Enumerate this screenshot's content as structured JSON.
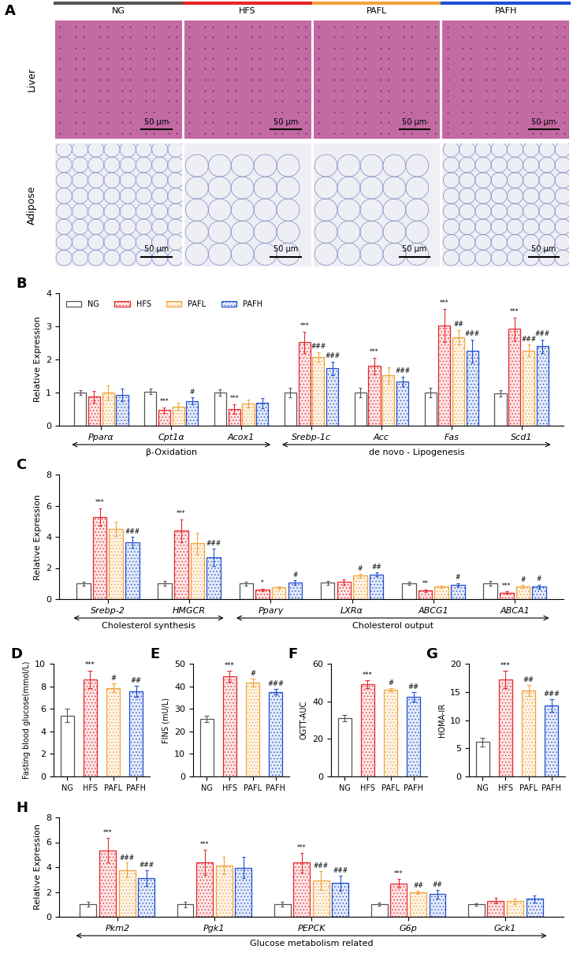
{
  "images": {
    "label": "A",
    "columns": [
      {
        "name": "NG",
        "color": "#555555"
      },
      {
        "name": "HFS",
        "color": "#e8262a"
      },
      {
        "name": "PAFL",
        "color": "#f2a33a"
      },
      {
        "name": "PAFH",
        "color": "#1f4fd1"
      }
    ],
    "rows": [
      "Liver",
      "Adipose"
    ],
    "scale_bar": "50 μm"
  },
  "chart_data": [
    {
      "type": "bar",
      "label": "B",
      "y_label": "Relative Expression",
      "categories": [
        "Pparα",
        "Cpt1α",
        "Acox1",
        "Srebp-1c",
        "Acc",
        "Fas",
        "Scd1"
      ],
      "groups": [
        {
          "label": "β-Oxidation",
          "members": [
            "Pparα",
            "Cpt1α",
            "Acox1"
          ]
        },
        {
          "label": "de novo - Lipogenesis",
          "members": [
            "Srebp-1c",
            "Acc",
            "Fas",
            "Scd1"
          ]
        }
      ],
      "ylim": [
        0,
        4
      ],
      "yticks": [
        0,
        1,
        2,
        3,
        4
      ],
      "legend": "upper left",
      "series": [
        {
          "name": "NG",
          "color": "#555555",
          "values": [
            1.0,
            1.03,
            1.0,
            1.0,
            1.0,
            1.0,
            0.97
          ],
          "errors": [
            0.08,
            0.08,
            0.1,
            0.15,
            0.15,
            0.15,
            0.1
          ],
          "significance": [
            null,
            null,
            null,
            null,
            null,
            null,
            null
          ]
        },
        {
          "name": "HFS",
          "color": "#e8262a",
          "values": [
            0.87,
            0.47,
            0.5,
            2.52,
            1.8,
            3.03,
            2.92
          ],
          "errors": [
            0.18,
            0.08,
            0.15,
            0.32,
            0.25,
            0.5,
            0.35
          ],
          "significance": [
            null,
            "***",
            "***",
            "***",
            "***",
            "***",
            "***"
          ]
        },
        {
          "name": "PAFL",
          "color": "#f2a33a",
          "values": [
            1.0,
            0.58,
            0.67,
            2.07,
            1.52,
            2.67,
            2.27
          ],
          "errors": [
            0.22,
            0.1,
            0.12,
            0.15,
            0.25,
            0.22,
            0.18
          ],
          "significance": [
            null,
            null,
            null,
            "###",
            null,
            "##",
            "###"
          ]
        },
        {
          "name": "PAFH",
          "color": "#1f4fd1",
          "values": [
            0.93,
            0.75,
            0.68,
            1.73,
            1.33,
            2.25,
            2.4
          ],
          "errors": [
            0.2,
            0.1,
            0.15,
            0.2,
            0.15,
            0.35,
            0.2
          ],
          "significance": [
            null,
            "#",
            null,
            "###",
            "###",
            "###",
            "###"
          ]
        }
      ]
    },
    {
      "type": "bar",
      "label": "C",
      "y_label": "Relative Expression",
      "categories": [
        "Srebp-2",
        "HMGCR",
        "Pparγ",
        "LXRα",
        "ABCG1",
        "ABCA1"
      ],
      "groups": [
        {
          "label": "Cholesterol synthesis",
          "members": [
            "Srebp-2",
            "HMGCR"
          ]
        },
        {
          "label": "Cholesterol output",
          "members": [
            "Pparγ",
            "LXRα",
            "ABCG1",
            "ABCA1"
          ]
        }
      ],
      "ylim": [
        0,
        8
      ],
      "yticks": [
        0,
        2,
        4,
        6,
        8
      ],
      "series": [
        {
          "name": "NG",
          "color": "#555555",
          "values": [
            1.0,
            1.0,
            1.0,
            1.05,
            1.0,
            1.0
          ],
          "errors": [
            0.12,
            0.15,
            0.12,
            0.12,
            0.1,
            0.15
          ],
          "significance": [
            null,
            null,
            null,
            null,
            null,
            null
          ]
        },
        {
          "name": "HFS",
          "color": "#e8262a",
          "values": [
            5.28,
            4.38,
            0.6,
            1.1,
            0.55,
            0.42
          ],
          "errors": [
            0.55,
            0.75,
            0.08,
            0.18,
            0.08,
            0.08
          ],
          "significance": [
            "***",
            "***",
            "*",
            null,
            "**",
            "***"
          ]
        },
        {
          "name": "PAFL",
          "color": "#f2a33a",
          "values": [
            4.5,
            3.57,
            0.75,
            1.5,
            0.8,
            0.8
          ],
          "errors": [
            0.45,
            0.7,
            0.08,
            0.12,
            0.08,
            0.1
          ],
          "significance": [
            null,
            null,
            null,
            "#",
            null,
            "#"
          ]
        },
        {
          "name": "PAFH",
          "color": "#1f4fd1",
          "values": [
            3.65,
            2.67,
            1.05,
            1.58,
            0.93,
            0.8
          ],
          "errors": [
            0.35,
            0.55,
            0.15,
            0.12,
            0.1,
            0.12
          ],
          "significance": [
            "###",
            "###",
            "#",
            "##",
            "#",
            "#"
          ]
        }
      ]
    },
    {
      "type": "bar",
      "label": "D",
      "y_label": "Fasting blood glucose(mmol/L)",
      "categories": [
        "NG",
        "HFS",
        "PAFL",
        "PAFH"
      ],
      "colors": [
        "#555555",
        "#e8262a",
        "#f2a33a",
        "#1f4fd1"
      ],
      "values": [
        5.4,
        8.6,
        7.85,
        7.55
      ],
      "errors": [
        0.6,
        0.8,
        0.4,
        0.5
      ],
      "significance": [
        null,
        "***",
        "#",
        "##"
      ],
      "ylim": [
        0,
        10
      ],
      "yticks": [
        0,
        2,
        4,
        6,
        8,
        10
      ]
    },
    {
      "type": "bar",
      "label": "E",
      "y_label": "FINS (mU/L)",
      "categories": [
        "NG",
        "HFS",
        "PAFL",
        "PAFH"
      ],
      "colors": [
        "#555555",
        "#e8262a",
        "#f2a33a",
        "#1f4fd1"
      ],
      "values": [
        25.5,
        44.3,
        41.5,
        37.5
      ],
      "errors": [
        1.5,
        2.5,
        1.8,
        1.2
      ],
      "significance": [
        null,
        "***",
        "#",
        "###"
      ],
      "ylim": [
        0,
        50
      ],
      "yticks": [
        0,
        10,
        20,
        30,
        40,
        50
      ]
    },
    {
      "type": "bar",
      "label": "F",
      "y_label": "OGTT-AUC",
      "categories": [
        "NG",
        "HFS",
        "PAFL",
        "PAFH"
      ],
      "colors": [
        "#555555",
        "#e8262a",
        "#f2a33a",
        "#1f4fd1"
      ],
      "values": [
        31,
        49,
        46,
        42.5
      ],
      "errors": [
        1.8,
        2,
        0.8,
        2.5
      ],
      "significance": [
        null,
        "***",
        "#",
        "##"
      ],
      "ylim": [
        0,
        60
      ],
      "yticks": [
        0,
        20,
        40,
        60
      ]
    },
    {
      "type": "bar",
      "label": "G",
      "y_label": "HOMA-IR",
      "categories": [
        "NG",
        "HFS",
        "PAFL",
        "PAFH"
      ],
      "colors": [
        "#555555",
        "#e8262a",
        "#f2a33a",
        "#1f4fd1"
      ],
      "values": [
        6.1,
        17.2,
        15.2,
        12.6
      ],
      "errors": [
        0.8,
        1.5,
        1.0,
        1.1
      ],
      "significance": [
        null,
        "***",
        "##",
        "###"
      ],
      "ylim": [
        0,
        20
      ],
      "yticks": [
        0,
        5,
        10,
        15,
        20
      ]
    },
    {
      "type": "bar",
      "label": "H",
      "y_label": "Relative Expression",
      "categories": [
        "Pkm2",
        "Pgk1",
        "PEPCK",
        "G6p",
        "Gck1"
      ],
      "groups": [
        {
          "label": "Glucose metabolism related",
          "members": [
            "Pkm2",
            "Pgk1",
            "PEPCK",
            "G6p",
            "Gck1"
          ]
        }
      ],
      "ylim": [
        0,
        8
      ],
      "yticks": [
        0,
        2,
        4,
        6,
        8
      ],
      "series": [
        {
          "name": "NG",
          "color": "#555555",
          "values": [
            1.0,
            1.0,
            1.0,
            1.0,
            1.0
          ],
          "errors": [
            0.2,
            0.22,
            0.2,
            0.12,
            0.1
          ],
          "significance": [
            null,
            null,
            null,
            null,
            null
          ]
        },
        {
          "name": "HFS",
          "color": "#e8262a",
          "values": [
            5.35,
            4.38,
            4.35,
            2.68,
            1.3
          ],
          "errors": [
            1.0,
            1.0,
            0.8,
            0.35,
            0.2
          ],
          "significance": [
            "***",
            "***",
            "***",
            "***",
            null
          ]
        },
        {
          "name": "PAFL",
          "color": "#f2a33a",
          "values": [
            3.75,
            4.15,
            2.92,
            1.97,
            1.25
          ],
          "errors": [
            0.6,
            0.7,
            0.75,
            0.12,
            0.22
          ],
          "significance": [
            "###",
            null,
            "###",
            "##",
            null
          ]
        },
        {
          "name": "PAFH",
          "color": "#1f4fd1",
          "values": [
            3.12,
            3.95,
            2.7,
            1.83,
            1.45
          ],
          "errors": [
            0.65,
            0.85,
            0.6,
            0.35,
            0.28
          ],
          "significance": [
            "###",
            null,
            "###",
            "##",
            null
          ]
        }
      ]
    }
  ]
}
